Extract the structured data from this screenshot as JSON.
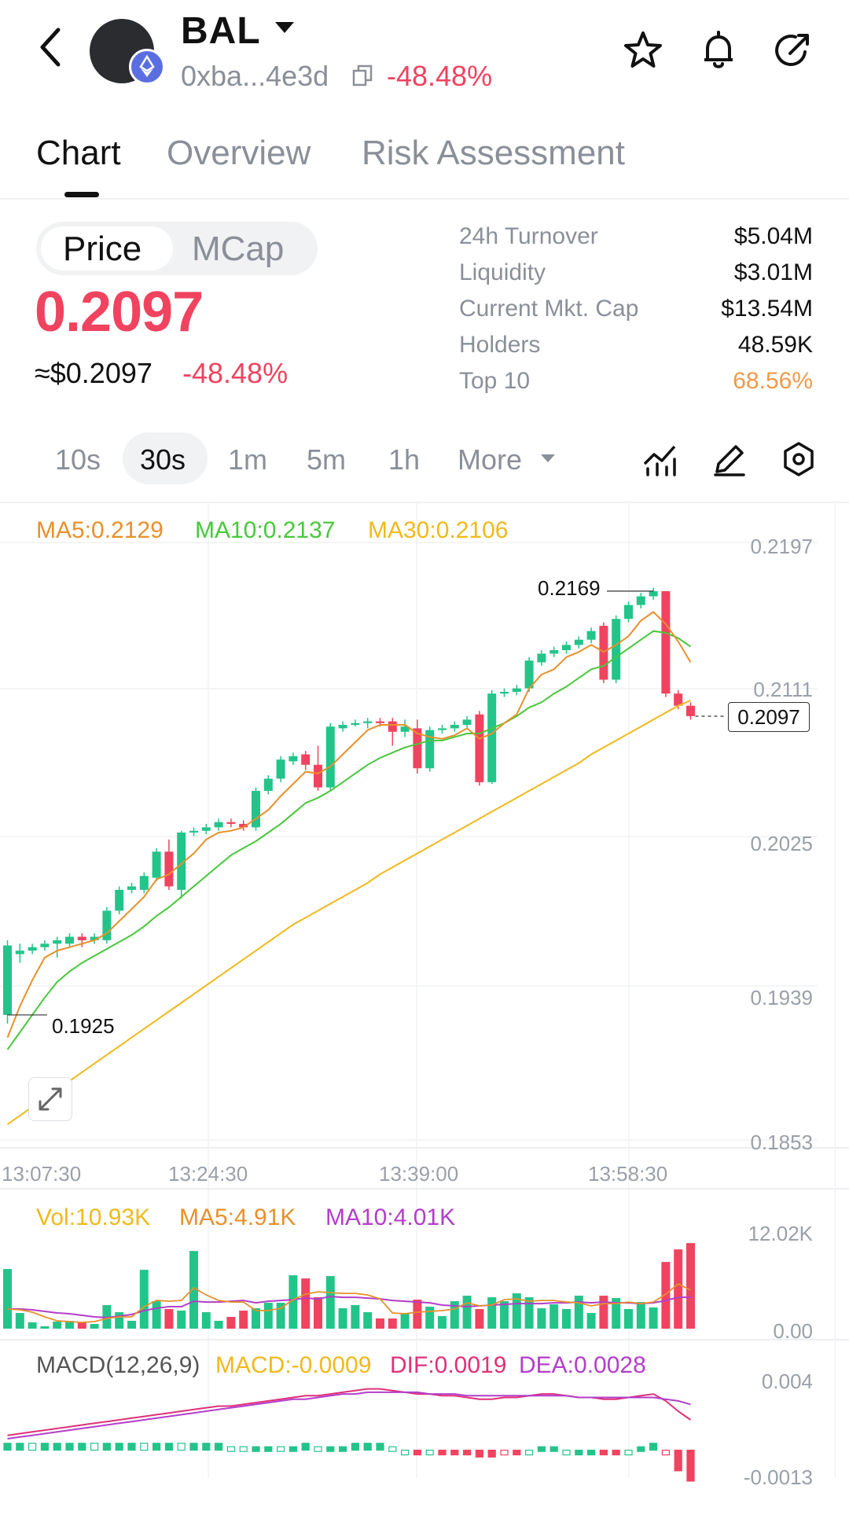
{
  "header": {
    "symbol": "BAL",
    "address": "0xba...4e3d",
    "change": "-48.48%",
    "icons": [
      "back-icon",
      "star-icon",
      "bell-icon",
      "share-icon",
      "copy-icon",
      "ethereum-icon"
    ]
  },
  "tabs": [
    "Chart",
    "Overview",
    "Risk Assessment"
  ],
  "price_toggle": {
    "price": "Price",
    "mcap": "MCap"
  },
  "price": {
    "value": "0.2097",
    "usd": "≈$0.2097",
    "change": "-48.48%"
  },
  "stats": [
    {
      "label": "24h  Turnover",
      "value": "$5.04M"
    },
    {
      "label": "Liquidity",
      "value": "$3.01M"
    },
    {
      "label": "Current Mkt. Cap",
      "value": "$13.54M"
    },
    {
      "label": "Holders",
      "value": "48.59K"
    },
    {
      "label": "Top 10",
      "value": "68.56%"
    }
  ],
  "intervals": {
    "i10s": "10s",
    "i30s": "30s",
    "i1m": "1m",
    "i5m": "5m",
    "i1h": "1h",
    "more": "More"
  },
  "colors": {
    "up": "#23c48a",
    "down": "#f0435f",
    "ma5": "#e8902b",
    "ma10": "#48c83c",
    "ma30": "#f0b91c",
    "vma10": "#b33ec9",
    "orange": "#f09a4a"
  },
  "ma_legend": {
    "ma5": "MA5:0.2129",
    "ma10": "MA10:0.2137",
    "ma30": "MA30:0.2106"
  },
  "y_ticks": [
    "0.2197",
    "0.2111",
    "0.2025",
    "0.1939",
    "0.1853"
  ],
  "x_ticks": [
    "13:07:30",
    "13:24:30",
    "13:39:00",
    "13:58:30"
  ],
  "markers": {
    "high": "0.2169",
    "low": "0.1925",
    "last": "0.2097"
  },
  "vol_legend": {
    "vol": "Vol:10.93K",
    "ma5": "MA5:4.91K",
    "ma10": "MA10:4.01K"
  },
  "vol_ticks": [
    "12.02K",
    "0.00"
  ],
  "macd_legend": {
    "name": "MACD(12,26,9)",
    "macd": "MACD:-0.0009",
    "dif": "DIF:0.0019",
    "dea": "DEA:0.0028"
  },
  "macd_ticks": [
    "0.004",
    "-0.0013"
  ],
  "chart_data": {
    "type": "candlestick",
    "ylim": [
      0.1853,
      0.2197
    ],
    "candles": [
      [
        0.1925,
        0.1965,
        0.192,
        0.1968
      ],
      [
        0.196,
        0.1962,
        0.1955,
        0.1966
      ],
      [
        0.1962,
        0.1964,
        0.196,
        0.1966
      ],
      [
        0.1964,
        0.1966,
        0.1962,
        0.1968
      ],
      [
        0.1966,
        0.1968,
        0.1958,
        0.197
      ],
      [
        0.1966,
        0.197,
        0.1964,
        0.1972
      ],
      [
        0.197,
        0.1968,
        0.1964,
        0.1972
      ],
      [
        0.1968,
        0.197,
        0.1966,
        0.1972
      ],
      [
        0.1968,
        0.1985,
        0.1966,
        0.1987
      ],
      [
        0.1985,
        0.1997,
        0.1983,
        0.1999
      ],
      [
        0.1997,
        0.1999,
        0.1995,
        0.2001
      ],
      [
        0.1997,
        0.2005,
        0.1995,
        0.2007
      ],
      [
        0.2004,
        0.2019,
        0.2002,
        0.2021
      ],
      [
        0.2019,
        0.1999,
        0.1997,
        0.2026
      ],
      [
        0.1997,
        0.203,
        0.1992,
        0.2031
      ],
      [
        0.203,
        0.2031,
        0.2028,
        0.2033
      ],
      [
        0.2031,
        0.2033,
        0.2029,
        0.2035
      ],
      [
        0.2033,
        0.2036,
        0.2031,
        0.2038
      ],
      [
        0.2036,
        0.2035,
        0.2033,
        0.2038
      ],
      [
        0.2035,
        0.2033,
        0.2031,
        0.2037
      ],
      [
        0.2033,
        0.2054,
        0.2031,
        0.2056
      ],
      [
        0.2054,
        0.2061,
        0.2052,
        0.2063
      ],
      [
        0.2061,
        0.2072,
        0.2059,
        0.2074
      ],
      [
        0.2071,
        0.2074,
        0.2069,
        0.2076
      ],
      [
        0.2075,
        0.2069,
        0.2066,
        0.2077
      ],
      [
        0.2069,
        0.2056,
        0.2054,
        0.208
      ],
      [
        0.2056,
        0.2091,
        0.2054,
        0.2093
      ],
      [
        0.209,
        0.2092,
        0.2088,
        0.2094
      ],
      [
        0.2092,
        0.2093,
        0.2091,
        0.2095
      ],
      [
        0.2093,
        0.2094,
        0.209,
        0.2096
      ],
      [
        0.2094,
        0.2093,
        0.2091,
        0.2096
      ],
      [
        0.2094,
        0.2088,
        0.208,
        0.2096
      ],
      [
        0.2088,
        0.2091,
        0.2085,
        0.2095
      ],
      [
        0.209,
        0.2067,
        0.2064,
        0.2095
      ],
      [
        0.2067,
        0.2089,
        0.2065,
        0.2091
      ],
      [
        0.2089,
        0.209,
        0.2087,
        0.2092
      ],
      [
        0.209,
        0.2092,
        0.2088,
        0.2094
      ],
      [
        0.2092,
        0.2095,
        0.209,
        0.2097
      ],
      [
        0.2098,
        0.2059,
        0.2057,
        0.21
      ],
      [
        0.2059,
        0.211,
        0.2058,
        0.2112
      ],
      [
        0.211,
        0.2111,
        0.2108,
        0.2113
      ],
      [
        0.2111,
        0.2113,
        0.2109,
        0.2115
      ],
      [
        0.2113,
        0.2129,
        0.2111,
        0.2131
      ],
      [
        0.2128,
        0.2133,
        0.2126,
        0.2135
      ],
      [
        0.2133,
        0.2135,
        0.2131,
        0.2137
      ],
      [
        0.2135,
        0.2138,
        0.2133,
        0.214
      ],
      [
        0.2138,
        0.2141,
        0.2136,
        0.2143
      ],
      [
        0.2141,
        0.2146,
        0.2139,
        0.2148
      ],
      [
        0.2149,
        0.2118,
        0.2116,
        0.2151
      ],
      [
        0.2118,
        0.2153,
        0.2116,
        0.2155
      ],
      [
        0.2153,
        0.2161,
        0.2151,
        0.2163
      ],
      [
        0.2161,
        0.2166,
        0.2159,
        0.2168
      ],
      [
        0.2166,
        0.2169,
        0.2164,
        0.2171
      ],
      [
        0.2169,
        0.211,
        0.2108,
        0.2169
      ],
      [
        0.211,
        0.2103,
        0.2101,
        0.2112
      ],
      [
        0.2103,
        0.2097,
        0.2095,
        0.2105
      ]
    ],
    "ma5": [
      0.1912,
      0.193,
      0.1945,
      0.1958,
      0.1962,
      0.1964,
      0.1966,
      0.1968,
      0.1972,
      0.1979,
      0.1986,
      0.1993,
      0.2003,
      0.2006,
      0.2012,
      0.2018,
      0.2026,
      0.203,
      0.2031,
      0.2033,
      0.2038,
      0.2043,
      0.2051,
      0.2058,
      0.2065,
      0.2064,
      0.2068,
      0.2075,
      0.2082,
      0.2089,
      0.2092,
      0.2092,
      0.2092,
      0.2087,
      0.2085,
      0.2084,
      0.2086,
      0.209,
      0.2084,
      0.2087,
      0.2093,
      0.2098,
      0.2113,
      0.2121,
      0.2124,
      0.2131,
      0.2134,
      0.2138,
      0.2134,
      0.2138,
      0.2143,
      0.2152,
      0.2157,
      0.215,
      0.214,
      0.2128
    ],
    "ma10": [
      0.1905,
      0.1915,
      0.1925,
      0.1935,
      0.1944,
      0.195,
      0.1955,
      0.1959,
      0.1963,
      0.1967,
      0.1971,
      0.1976,
      0.1982,
      0.1987,
      0.1993,
      0.1999,
      0.2005,
      0.2011,
      0.2017,
      0.2021,
      0.2025,
      0.203,
      0.2035,
      0.2041,
      0.2047,
      0.205,
      0.2054,
      0.2059,
      0.2064,
      0.2069,
      0.2073,
      0.2076,
      0.2079,
      0.2081,
      0.2083,
      0.2083,
      0.2085,
      0.2087,
      0.2087,
      0.209,
      0.2093,
      0.2097,
      0.2102,
      0.2105,
      0.211,
      0.2114,
      0.2119,
      0.2124,
      0.2126,
      0.2131,
      0.2136,
      0.2141,
      0.2146,
      0.2145,
      0.2142,
      0.2137
    ],
    "ma30": [
      0.1862,
      0.1867,
      0.1872,
      0.1877,
      0.1882,
      0.1887,
      0.1892,
      0.1897,
      0.1902,
      0.1907,
      0.1912,
      0.1917,
      0.1922,
      0.1927,
      0.1932,
      0.1937,
      0.1942,
      0.1947,
      0.1952,
      0.1957,
      0.1962,
      0.1967,
      0.1972,
      0.1977,
      0.1981,
      0.1985,
      0.1989,
      0.1993,
      0.1997,
      0.2001,
      0.2006,
      0.201,
      0.2014,
      0.2018,
      0.2022,
      0.2026,
      0.203,
      0.2034,
      0.2038,
      0.2042,
      0.2046,
      0.205,
      0.2054,
      0.2058,
      0.2062,
      0.2066,
      0.207,
      0.2075,
      0.2079,
      0.2083,
      0.2087,
      0.2091,
      0.2095,
      0.2099,
      0.2103,
      0.2106
    ],
    "volume": [
      7.6,
      2.0,
      0.8,
      0.3,
      0.9,
      1.0,
      0.8,
      0.6,
      3.0,
      2.1,
      1.0,
      7.5,
      3.5,
      2.5,
      2.3,
      9.9,
      2.1,
      1.0,
      1.5,
      2.3,
      2.6,
      3.3,
      3.3,
      6.8,
      6.4,
      4.0,
      6.7,
      2.6,
      3.0,
      2.1,
      1.3,
      1.3,
      2.0,
      3.7,
      2.8,
      1.6,
      3.5,
      4.2,
      2.5,
      4.0,
      3.5,
      4.5,
      4.0,
      2.6,
      3.1,
      2.5,
      4.2,
      2.0,
      4.2,
      3.9,
      2.5,
      3.4,
      2.7,
      8.5,
      10.1,
      10.9
    ],
    "vol_ylim": [
      0,
      12.02
    ],
    "vol_ma5": [
      2.5,
      2.4,
      2.1,
      1.5,
      1.0,
      0.9,
      0.8,
      0.9,
      1.3,
      1.5,
      1.5,
      2.8,
      3.6,
      3.5,
      3.6,
      5.2,
      4.3,
      3.6,
      3.4,
      3.4,
      2.3,
      2.3,
      2.6,
      3.7,
      4.4,
      4.7,
      4.6,
      4.5,
      4.5,
      4.3,
      3.8,
      2.0,
      1.9,
      2.1,
      2.2,
      2.3,
      2.5,
      3.3,
      2.9,
      3.0,
      3.7,
      3.8,
      3.5,
      3.6,
      3.6,
      3.4,
      3.3,
      2.9,
      3.2,
      3.2,
      3.4,
      3.2,
      3.4,
      4.4,
      5.7,
      4.91
    ],
    "vol_ma10": [
      2.5,
      2.5,
      2.4,
      2.2,
      2.0,
      1.9,
      1.7,
      1.5,
      1.4,
      1.6,
      1.8,
      2.3,
      2.6,
      2.8,
      2.8,
      3.5,
      3.4,
      3.4,
      3.5,
      3.6,
      3.3,
      3.5,
      3.6,
      3.7,
      3.9,
      3.8,
      4.1,
      4.0,
      4.0,
      3.9,
      3.8,
      3.6,
      3.5,
      3.4,
      3.3,
      3.0,
      2.9,
      2.8,
      2.9,
      3.0,
      3.1,
      3.2,
      3.2,
      3.2,
      3.3,
      3.3,
      3.4,
      3.3,
      3.4,
      3.3,
      3.3,
      3.2,
      3.3,
      3.6,
      4.0,
      4.01
    ],
    "dif": [
      0.001,
      0.0011,
      0.0012,
      0.0013,
      0.0014,
      0.0015,
      0.0016,
      0.0017,
      0.0018,
      0.0019,
      0.002,
      0.0021,
      0.0022,
      0.0023,
      0.0024,
      0.0025,
      0.0026,
      0.0027,
      0.0027,
      0.0028,
      0.0029,
      0.003,
      0.0031,
      0.0032,
      0.0033,
      0.0033,
      0.0034,
      0.0035,
      0.0036,
      0.0037,
      0.0037,
      0.0036,
      0.0035,
      0.0034,
      0.0034,
      0.0033,
      0.0033,
      0.0032,
      0.0031,
      0.0031,
      0.0032,
      0.0032,
      0.0033,
      0.0034,
      0.0034,
      0.0033,
      0.0032,
      0.0032,
      0.0031,
      0.0031,
      0.0032,
      0.0033,
      0.0034,
      0.003,
      0.0024,
      0.0019
    ],
    "dea": [
      0.0008,
      0.0009,
      0.001,
      0.0011,
      0.0012,
      0.0013,
      0.0014,
      0.0015,
      0.0016,
      0.0017,
      0.0018,
      0.0019,
      0.002,
      0.0021,
      0.0022,
      0.0023,
      0.0024,
      0.0025,
      0.0026,
      0.0027,
      0.0028,
      0.0029,
      0.003,
      0.0031,
      0.0031,
      0.0032,
      0.0033,
      0.0034,
      0.0034,
      0.0035,
      0.0035,
      0.0035,
      0.0035,
      0.0035,
      0.0034,
      0.0034,
      0.0034,
      0.0033,
      0.0033,
      0.0033,
      0.0033,
      0.0033,
      0.0033,
      0.0033,
      0.0033,
      0.0033,
      0.0032,
      0.0032,
      0.0032,
      0.0032,
      0.0032,
      0.0032,
      0.0032,
      0.0031,
      0.003,
      0.0028
    ],
    "macd_ylim": [
      -0.0013,
      0.004
    ]
  }
}
